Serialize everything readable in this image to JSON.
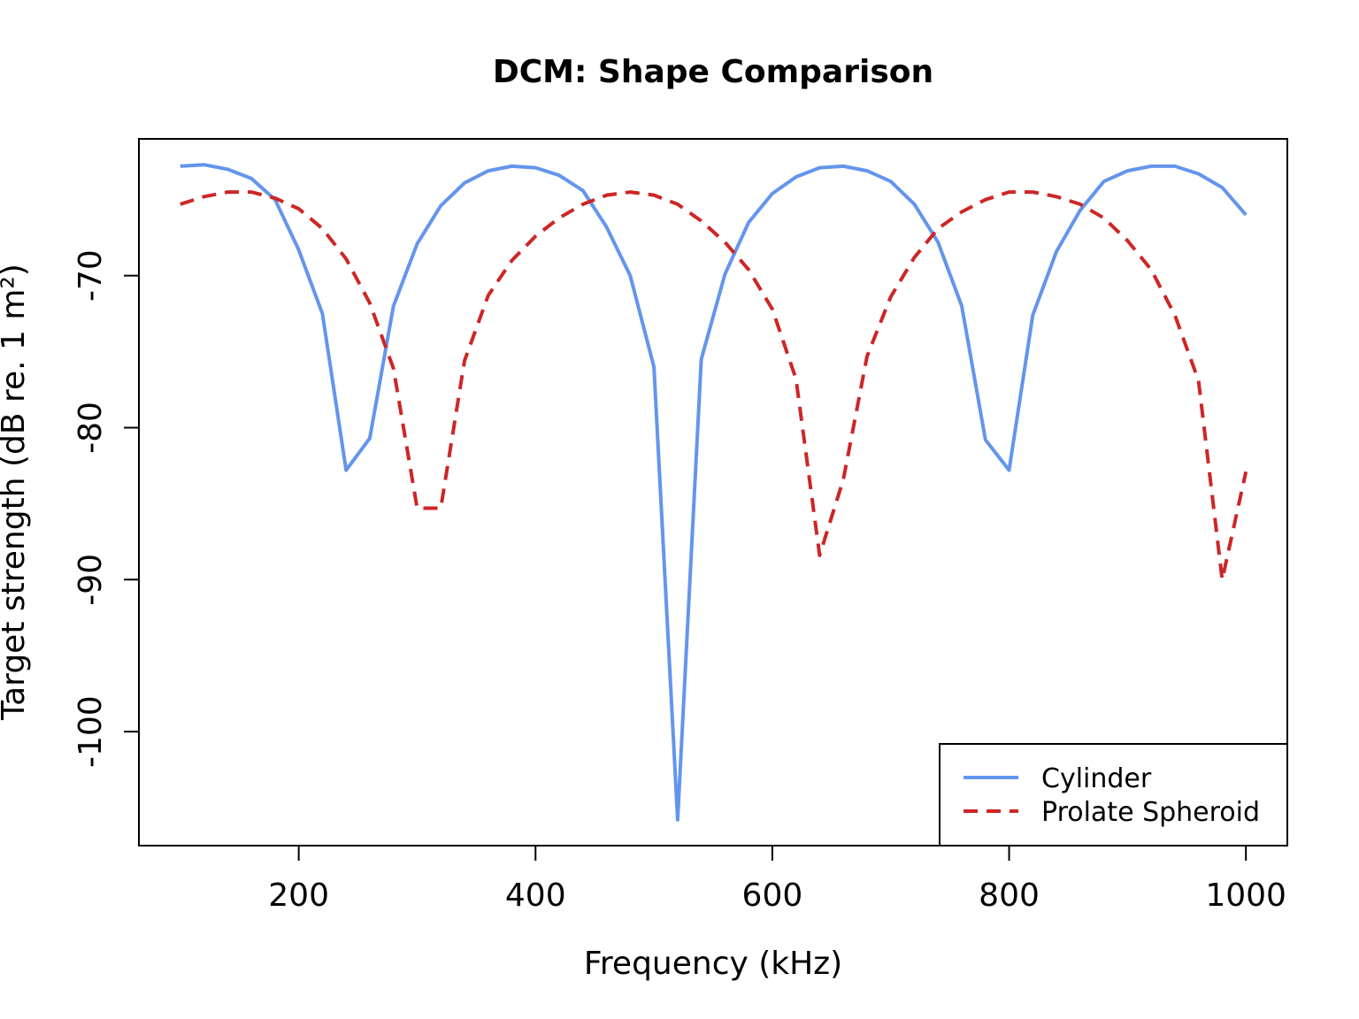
{
  "chart_data": {
    "type": "line",
    "title": "DCM: Shape Comparison",
    "xlabel": "Frequency (kHz)",
    "ylabel": "Target strength (dB re. 1 m²)",
    "xlim": [
      65,
      1035
    ],
    "ylim": [
      -107.5,
      -61
    ],
    "x_ticks": [
      200,
      400,
      600,
      800,
      1000
    ],
    "x_tick_labels": [
      "200",
      "400",
      "600",
      "800",
      "1000"
    ],
    "y_ticks": [
      -100,
      -90,
      -80,
      -70
    ],
    "y_tick_labels": [
      "-100",
      "-90",
      "-80",
      "-70"
    ],
    "grid": false,
    "legend_position": "bottom-right",
    "x": [
      100,
      120,
      140,
      160,
      180,
      200,
      220,
      240,
      260,
      280,
      300,
      320,
      340,
      360,
      380,
      400,
      420,
      440,
      460,
      480,
      500,
      520,
      540,
      560,
      580,
      600,
      620,
      640,
      660,
      680,
      700,
      720,
      740,
      760,
      780,
      800,
      820,
      840,
      860,
      880,
      900,
      920,
      940,
      960,
      980,
      1000
    ],
    "series": [
      {
        "name": "Cylinder",
        "color": "#6495ED",
        "dash": "solid",
        "values": [
          -62.8,
          -62.7,
          -63.0,
          -63.6,
          -65.0,
          -68.3,
          -72.5,
          -82.8,
          -80.7,
          -72.0,
          -67.9,
          -65.4,
          -63.9,
          -63.1,
          -62.8,
          -62.9,
          -63.4,
          -64.4,
          -66.8,
          -70.0,
          -76.0,
          -105.8,
          -75.5,
          -69.9,
          -66.5,
          -64.6,
          -63.5,
          -62.9,
          -62.8,
          -63.1,
          -63.8,
          -65.3,
          -67.8,
          -72.0,
          -80.8,
          -82.8,
          -72.6,
          -68.4,
          -65.7,
          -63.8,
          -63.1,
          -62.8,
          -62.8,
          -63.3,
          -64.2,
          -66.0
        ],
        "color_name": "cornflowerblue"
      },
      {
        "name": "Prolate Spheroid",
        "color": "#CD2626",
        "dash": "dashed",
        "values": [
          -65.3,
          -64.8,
          -64.5,
          -64.5,
          -64.9,
          -65.6,
          -66.9,
          -68.9,
          -71.8,
          -76.1,
          -85.3,
          -85.3,
          -75.6,
          -71.3,
          -69.0,
          -67.4,
          -66.2,
          -65.3,
          -64.7,
          -64.5,
          -64.7,
          -65.3,
          -66.4,
          -67.8,
          -69.6,
          -72.2,
          -76.8,
          -88.4,
          -83.4,
          -75.3,
          -71.4,
          -68.8,
          -66.9,
          -65.8,
          -65.0,
          -64.5,
          -64.5,
          -64.8,
          -65.3,
          -66.2,
          -67.7,
          -69.6,
          -72.6,
          -76.9,
          -90.0,
          -82.9
        ],
        "color_name": "firebrick3"
      }
    ]
  }
}
